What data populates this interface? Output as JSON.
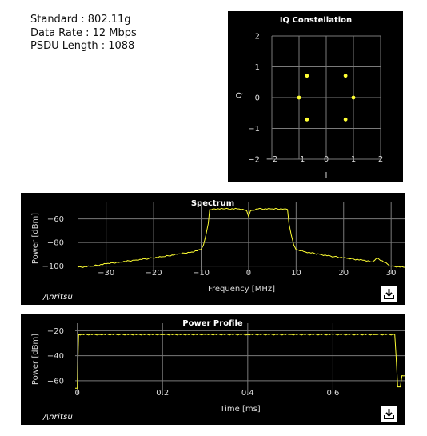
{
  "info": {
    "standard": "Standard : 802.11g",
    "data_rate": "Data Rate : 12 Mbps",
    "psdu_length": "PSDU Length : 1088"
  },
  "brand": "/\\nritsu",
  "colors": {
    "background": "#000000",
    "trace": "#ffff33",
    "grid": "#7a7a7a",
    "axis_text": "#dddddd",
    "title": "#ffffff"
  },
  "chart_data": [
    {
      "id": "iq",
      "type": "scatter",
      "title": "IQ Constellation",
      "xlabel": "I",
      "ylabel": "Q",
      "xlim": [
        -2,
        2
      ],
      "ylim": [
        -2,
        2
      ],
      "xticks": [
        -2,
        -1,
        0,
        1,
        2
      ],
      "yticks": [
        -2,
        -1,
        0,
        1,
        2
      ],
      "xtick_labels": [
        "−2",
        "−1",
        "0",
        "1",
        "2"
      ],
      "ytick_labels": [
        "−2",
        "−1",
        "0",
        "1",
        "2"
      ],
      "grid": true,
      "series": [
        {
          "points": [
            [
              -0.71,
              0.71
            ],
            [
              0.71,
              0.71
            ],
            [
              -1.0,
              0.0
            ],
            [
              1.0,
              0.0
            ],
            [
              -0.71,
              -0.71
            ],
            [
              0.71,
              -0.71
            ]
          ]
        }
      ]
    },
    {
      "id": "spectrum",
      "type": "line",
      "title": "Spectrum",
      "xlabel": "Frequency [MHz]",
      "ylabel": "Power [dBm]",
      "xlim": [
        -36,
        33
      ],
      "ylim": [
        -107,
        -46
      ],
      "xticks": [
        -30,
        -20,
        -10,
        0,
        10,
        20,
        30
      ],
      "yticks": [
        -60,
        -80,
        -100
      ],
      "xtick_labels": [
        "−30",
        "−20",
        "−10",
        "0",
        "10",
        "20",
        "30"
      ],
      "ytick_labels": [
        "−60",
        "−80",
        "−100"
      ],
      "grid": true,
      "series": [
        {
          "x": [
            -36,
            -33,
            -30,
            -27,
            -24,
            -21,
            -18,
            -15,
            -12,
            -10,
            -9.5,
            -9,
            -8.5,
            -8.2,
            -7.5,
            -5,
            -2,
            -0.4,
            0,
            0.4,
            2,
            5,
            7.5,
            8.2,
            8.5,
            9,
            9.5,
            10,
            12,
            15,
            18,
            21,
            24,
            26,
            27,
            30,
            33
          ],
          "y": [
            -101,
            -100,
            -98,
            -96.5,
            -95,
            -93.5,
            -92,
            -90,
            -88,
            -86,
            -82,
            -74,
            -64,
            -52,
            -51.5,
            -51.5,
            -51.5,
            -53,
            -58,
            -53,
            -51.5,
            -51.5,
            -51.5,
            -52,
            -64,
            -74,
            -82,
            -86,
            -88,
            -90,
            -92,
            -93.5,
            -95,
            -96.5,
            -93,
            -100,
            -101
          ]
        }
      ]
    },
    {
      "id": "power",
      "type": "line",
      "title": "Power Profile",
      "xlabel": "Time [ms]",
      "ylabel": "Power [dBm]",
      "xlim": [
        -0.005,
        0.77
      ],
      "ylim": [
        -71,
        -14
      ],
      "xticks": [
        0,
        0.2,
        0.4,
        0.6
      ],
      "yticks": [
        -20,
        -40,
        -60
      ],
      "xtick_labels": [
        "0",
        "0.2",
        "0.4",
        "0.6"
      ],
      "ytick_labels": [
        "−20",
        "−40",
        "−60"
      ],
      "grid": true,
      "series": [
        {
          "x": [
            -0.005,
            0.0,
            0.0015,
            0.003,
            0.05,
            0.1,
            0.2,
            0.3,
            0.4,
            0.5,
            0.6,
            0.7,
            0.745,
            0.748,
            0.752,
            0.758,
            0.762,
            0.77
          ],
          "y": [
            -66,
            -66,
            -42,
            -23,
            -23,
            -23,
            -23,
            -23,
            -23,
            -23,
            -23,
            -23,
            -23,
            -40,
            -65,
            -65,
            -56,
            -56
          ]
        }
      ]
    }
  ]
}
